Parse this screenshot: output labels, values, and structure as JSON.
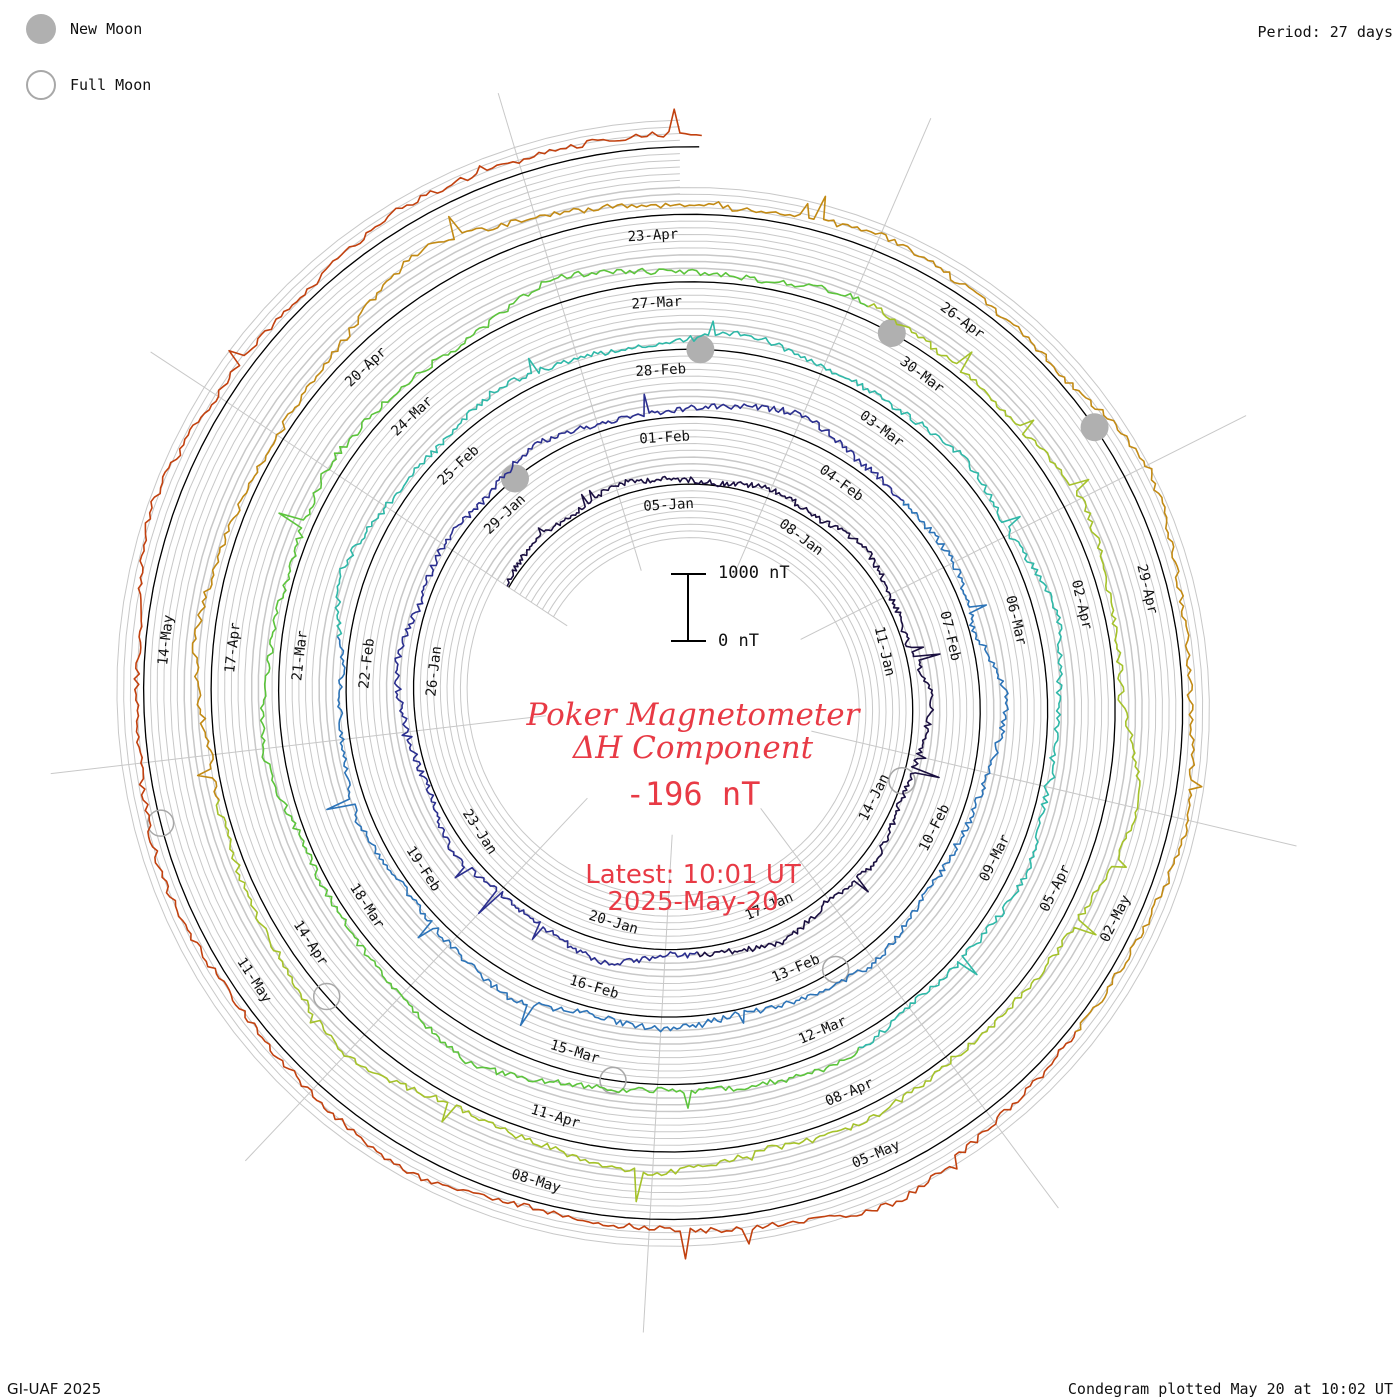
{
  "legend": {
    "new_moon_label": "New Moon",
    "full_moon_label": "Full Moon"
  },
  "period_label": "Period: 27 days",
  "footer": {
    "left": "GI-UAF 2025",
    "right": "Condegram plotted May 20 at 10:02 UT"
  },
  "center": {
    "title_line1": "Poker Magnetometer",
    "title_line2": "ΔH Component",
    "current_value": "-196 nT",
    "latest_line1": "Latest: 10:01 UT",
    "latest_line2": "2025-May-20"
  },
  "scale": {
    "top_label": "1000 nT",
    "bottom_label": "0 nT"
  },
  "colors": {
    "grid": "#c8c8c8",
    "baseline": "#000000",
    "title": "#e83a45",
    "moon_new": "#b0b0b0",
    "moon_full": "#a8a8a8"
  },
  "chart_data": {
    "type": "line",
    "title": "Poker Magnetometer ΔH Component",
    "start_date": "2025-01-01",
    "end_date": "2025-05-20",
    "period_days": 27,
    "units": "nT",
    "current_value_nT": -196,
    "date_labels": [
      "05-Jan",
      "08-Jan",
      "11-Jan",
      "14-Jan",
      "17-Jan",
      "20-Jan",
      "23-Jan",
      "26-Jan",
      "29-Jan",
      "01-Feb",
      "04-Feb",
      "07-Feb",
      "10-Feb",
      "13-Feb",
      "16-Feb",
      "19-Feb",
      "22-Feb",
      "25-Feb",
      "28-Feb",
      "03-Mar",
      "06-Mar",
      "09-Mar",
      "12-Mar",
      "15-Mar",
      "18-Mar",
      "21-Mar",
      "24-Mar",
      "27-Mar",
      "30-Mar",
      "02-Apr",
      "05-Apr",
      "08-Apr",
      "11-Apr",
      "14-Apr",
      "17-Apr",
      "20-Apr",
      "23-Apr",
      "26-Apr",
      "29-Apr",
      "02-May",
      "05-May",
      "08-May",
      "11-May",
      "14-May"
    ],
    "segment_colors": [
      "#1a0f40",
      "#2b2f8f",
      "#2d74b8",
      "#2fb8a8",
      "#5cc43c",
      "#a5c22a",
      "#c28a14",
      "#c2410f"
    ],
    "new_moons": [
      "2025-01-29",
      "2025-02-28",
      "2025-03-29",
      "2025-04-27"
    ],
    "full_moons": [
      "2025-01-13",
      "2025-02-12",
      "2025-03-14",
      "2025-04-13",
      "2025-05-12"
    ],
    "daily_dH_nT": [
      -40,
      -120,
      -60,
      -180,
      -90,
      -30,
      -150,
      -70,
      -220,
      -110,
      -60,
      -300,
      -140,
      -80,
      -200,
      -90,
      -260,
      -120,
      -70,
      -330,
      -150,
      -90,
      -210,
      -60,
      -130,
      -280,
      -100,
      -160,
      -60,
      -240,
      -110,
      -80,
      -190,
      -350,
      -120,
      -90,
      -170,
      -60,
      -420,
      -200,
      -110,
      -80,
      -260,
      -140,
      -70,
      -180,
      -90,
      -310,
      -150,
      -80,
      -220,
      -110,
      -60,
      -390,
      -170,
      -100,
      -240,
      -130,
      -80,
      -280,
      -120,
      -70,
      -200,
      -90,
      -340,
      -160,
      -100,
      -230,
      -120,
      -70,
      -260,
      -140,
      -90,
      -180,
      -450,
      -210,
      -110,
      -80,
      -300,
      -150,
      -90,
      -220,
      -120,
      -70,
      -380,
      -170,
      -100,
      -250,
      -130,
      -80,
      -290,
      -140,
      -90,
      -520,
      -240,
      -130,
      -80,
      -200,
      -110,
      -330,
      -160,
      -100,
      -430,
      -200,
      -120,
      -80,
      -270,
      -140,
      -90,
      -210,
      -600,
      -300,
      -150,
      -100,
      -240,
      -130,
      -90,
      -380,
      -180,
      -110,
      -260,
      -140,
      -90,
      -200,
      -480,
      -230,
      -130,
      -90,
      -300,
      -160,
      -100,
      -220,
      -130,
      -90,
      -350,
      -170,
      -110,
      -260,
      -190,
      -196
    ]
  }
}
